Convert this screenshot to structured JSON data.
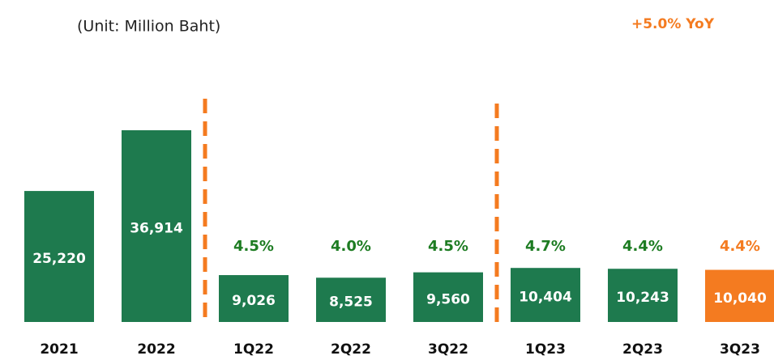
{
  "chart_data": {
    "type": "bar",
    "subtitle": "(Unit:  Million Baht)",
    "annotation": "+5.0% YoY",
    "categories": [
      "2021",
      "2022",
      "1Q22",
      "2Q22",
      "3Q22",
      "1Q23",
      "2Q23",
      "3Q23"
    ],
    "values": [
      25220,
      36914,
      9026,
      8525,
      9560,
      10404,
      10243,
      10040
    ],
    "value_labels": [
      "25,220",
      "36,914",
      "9,026",
      "8,525",
      "9,560",
      "10,404",
      "10,243",
      "10,040"
    ],
    "colors": [
      "#1e7a4e",
      "#1e7a4e",
      "#1e7a4e",
      "#1e7a4e",
      "#1e7a4e",
      "#1e7a4e",
      "#1e7a4e",
      "#f47b20"
    ],
    "margins": [
      null,
      null,
      4.5,
      4.0,
      4.5,
      4.7,
      4.4,
      4.4
    ],
    "margin_labels": [
      null,
      null,
      "4.5%",
      "4.0%",
      "4.5%",
      "4.7%",
      "4.4%",
      "4.4%"
    ],
    "margin_colors": [
      null,
      null,
      "#1d7c22",
      "#1d7c22",
      "#1d7c22",
      "#1d7c22",
      "#1d7c22",
      "#f47b20"
    ],
    "annotation_color": "#f47b20"
  }
}
